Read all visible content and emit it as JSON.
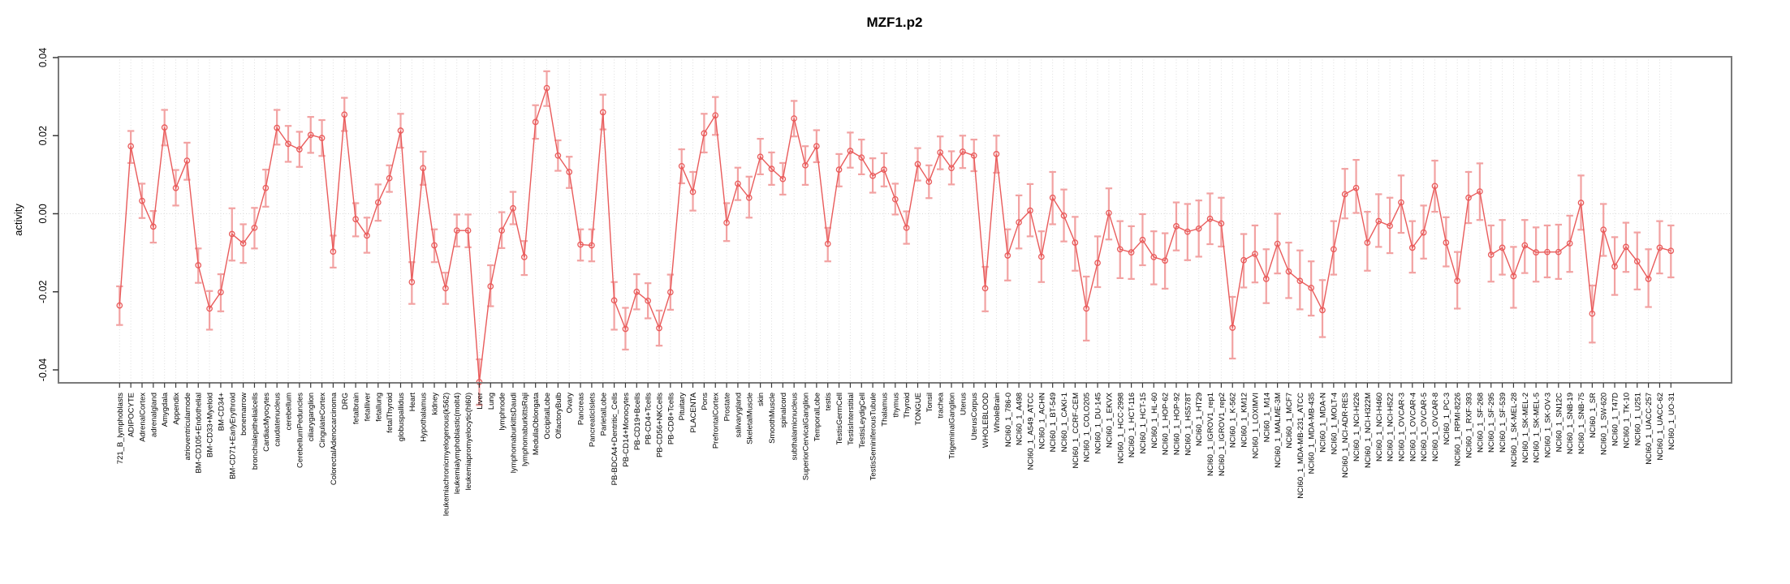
{
  "title": "MZF1.p2",
  "chart_data": {
    "type": "line",
    "title": "MZF1.p2",
    "xlabel": "",
    "ylabel": "activity",
    "ylim": [
      -0.052,
      0.0455
    ],
    "yticks": [
      0.04,
      0.02,
      0.0,
      -0.02,
      -0.04
    ],
    "ytick_labels": [
      "0.04",
      "0.02",
      "0.00",
      "-0.02",
      "-0.04"
    ],
    "grid": "vertical dotted gridline per category; horizontal dotted line at 0.00",
    "legend_position": "none",
    "marker": "open-circle",
    "error_bars": true,
    "colors": {
      "series": "#e95b5b",
      "error_bar": "#f2a2a2",
      "grid": "#dedede",
      "box": "#7a7a7a",
      "tick": "#3a3a3a",
      "text": "#000000"
    },
    "categories": [
      "721_B_lymphoblasts",
      "ADIPOCYTE",
      "AdrenalCortex",
      "adrenalgland",
      "Amygdala",
      "Appendix",
      "atrioventricularnode",
      "BM-CD105+Endothelial",
      "BM-CD33+Myeloid",
      "BM-CD34+",
      "BM-CD71+EarlyErythroid",
      "bonemarrow",
      "bronchialepithelialcells",
      "CardiacMyocytes",
      "caudatenucleus",
      "cerebellum",
      "CerebellumPeduncles",
      "ciliaryganglion",
      "CingulateCortex",
      "ColorectalAdenocarcinoma",
      "DRG",
      "fetalbrain",
      "fetalliver",
      "fetallung",
      "fetalThyroid",
      "globuspallidus",
      "Heart",
      "Hypothalamus",
      "kidney",
      "leukemiachronicmyelogenous(k562)",
      "leukemialymphoblastic(molt4)",
      "leukemiapromyelocytic(hl60)",
      "Liver",
      "Lung",
      "lymphnode",
      "lymphomaburkittsDaudi",
      "lymphomaburkittsRaji",
      "MedullaOblongata",
      "OccipitalLobe",
      "OlfactoryBulb",
      "Ovary",
      "Pancreas",
      "PancreaticIslets",
      "ParietalLobe",
      "PB-BDCA4+Dentritic_Cells",
      "PB-CD14+Monocytes",
      "PB-CD19+Bcells",
      "PB-CD4+Tcells",
      "PB-CD56+NKCells",
      "PB-CD8+Tcells",
      "Pituitary",
      "PLACENTA",
      "Pons",
      "PrefrontalCortex",
      "Prostate",
      "salivarygland",
      "SkeletalMuscle",
      "skin",
      "SmoothMuscle",
      "spinalcord",
      "subthalamicnucleus",
      "SuperiorCervicalGanglion",
      "TemporalLobe",
      "testis",
      "TestisGermCell",
      "TestisInterstitial",
      "TestisLeydigCell",
      "TestisSeminiferousTubule",
      "Thalamus",
      "thymus",
      "Thyroid",
      "TONGUE",
      "Tonsil",
      "trachea",
      "TrigeminalGanglion",
      "Uterus",
      "UterusCorpus",
      "WHOLEBLOOD",
      "WholeBrain",
      "NCI60_1_786-0",
      "NCI60_1_A498",
      "NCI60_1_A549_ATCC",
      "NCI60_1_ACHN",
      "NCI60_1_BT-549",
      "NCI60_1_CAKI-1",
      "NCI60_1_CCRF-CEM",
      "NCI60_1_COLO205",
      "NCI60_1_DU-145",
      "NCI60_1_EKVX",
      "NCI60_1_HCC-2998",
      "NCI60_1_HCT-116",
      "NCI60_1_HCT-15",
      "NCI60_1_HL-60",
      "NCI60_1_HOP-62",
      "NCI60_1_HOP-92",
      "NCI60_1_HS578T",
      "NCI60_1_HT29",
      "NCI60_1_IGROV1_rep1",
      "NCI60_1_IGROV1_rep2",
      "NCI60_1_K-562",
      "NCI60_1_KM12",
      "NCI60_1_LOXIMVI",
      "NCI60_1_M14",
      "NCI60_1_MALME-3M",
      "NCI60_1_MCF7",
      "NCI60_1_MDA-MB-231_ATCC",
      "NCI60_1_MDA-MB-435",
      "NCI60_1_MDA-N",
      "NCI60_1_MOLT-4",
      "NCI60_1_NCI-ADR-RES",
      "NCI60_1_NCI-H226",
      "NCI60_1_NCI-H322M",
      "NCI60_1_NCI-H460",
      "NCI60_1_NCI-H522",
      "NCI60_1_OVCAR-3",
      "NCI60_1_OVCAR-4",
      "NCI60_1_OVCAR-5",
      "NCI60_1_OVCAR-8",
      "NCI60_1_PC-3",
      "NCI60_1_RPMI-8226",
      "NCI60_1_RXF-393",
      "NCI60_1_SF-268",
      "NCI60_1_SF-295",
      "NCI60_1_SF-539",
      "NCI60_1_SK-MEL-28",
      "NCI60_1_SK-MEL-2",
      "NCI60_1_SK-MEL-5",
      "NCI60_1_SK-OV-3",
      "NCI60_1_SN12C",
      "NCI60_1_SNB-19",
      "NCI60_1_SNB-75",
      "NCI60_1_SR",
      "NCI60_1_SW-620",
      "NCI60_1_T47D",
      "NCI60_1_TK-10",
      "NCI60_1_U251",
      "NCI60_1_UACC-257",
      "NCI60_1_UACC-62",
      "NCI60_1_UO-31"
    ],
    "series": [
      {
        "name": "activity",
        "values": [
          -0.0235,
          0.0173,
          0.0033,
          -0.0033,
          0.0221,
          0.0066,
          0.0136,
          -0.0132,
          -0.0243,
          -0.0201,
          -0.0052,
          -0.0076,
          -0.0036,
          0.0066,
          0.022,
          0.0179,
          0.0165,
          0.0202,
          0.0194,
          -0.0097,
          0.0254,
          -0.0014,
          -0.0056,
          0.0029,
          0.0091,
          0.0213,
          -0.0175,
          0.0117,
          -0.0081,
          -0.0191,
          -0.0043,
          -0.0043,
          -0.0431,
          -0.0186,
          -0.0043,
          0.0014,
          -0.0111,
          0.0235,
          0.0322,
          0.0149,
          0.0107,
          -0.0079,
          -0.0081,
          0.026,
          -0.0222,
          -0.0295,
          -0.02,
          -0.0223,
          -0.0293,
          -0.0201,
          0.0122,
          0.0056,
          0.0206,
          0.0252,
          -0.0023,
          0.0077,
          0.0041,
          0.0146,
          0.0115,
          0.0089,
          0.0244,
          0.0124,
          0.0173,
          -0.0077,
          0.0113,
          0.0161,
          0.0144,
          0.0097,
          0.0113,
          0.0037,
          -0.0036,
          0.0127,
          0.0082,
          0.0157,
          0.0117,
          0.0159,
          0.0149,
          -0.0191,
          0.0153,
          -0.0107,
          -0.0022,
          0.0008,
          -0.011,
          0.0041,
          -0.0005,
          -0.0074,
          -0.0243,
          -0.0126,
          0.0002,
          -0.0091,
          -0.0099,
          -0.0067,
          -0.0111,
          -0.012,
          -0.0032,
          -0.0046,
          -0.0038,
          -0.0013,
          -0.0025,
          -0.0292,
          -0.0119,
          -0.0103,
          -0.0167,
          -0.0077,
          -0.0148,
          -0.0172,
          -0.019,
          -0.0247,
          -0.0091,
          0.005,
          0.0066,
          -0.0074,
          -0.0019,
          -0.0031,
          0.0029,
          -0.0087,
          -0.0048,
          0.0071,
          -0.0074,
          -0.0172,
          0.0041,
          0.0057,
          -0.0105,
          -0.0087,
          -0.016,
          -0.0081,
          -0.0099,
          -0.0098,
          -0.0098,
          -0.0076,
          0.0028,
          -0.0256,
          -0.0041,
          -0.0135,
          -0.0085,
          -0.0122,
          -0.0167,
          -0.0087,
          -0.0095
        ],
        "error_hi": [
          -0.0186,
          0.0212,
          0.0077,
          0.0007,
          0.0266,
          0.0112,
          0.0182,
          -0.0089,
          -0.0198,
          -0.0155,
          0.0014,
          -0.0027,
          0.0015,
          0.0113,
          0.0266,
          0.0225,
          0.021,
          0.0248,
          0.024,
          -0.0056,
          0.0297,
          0.0027,
          -0.001,
          0.0075,
          0.0124,
          0.0256,
          -0.0124,
          0.0159,
          -0.004,
          -0.0151,
          -0.0002,
          -0.0002,
          -0.0373,
          -0.0132,
          0.0004,
          0.0056,
          -0.007,
          0.0278,
          0.0365,
          0.0188,
          0.0146,
          -0.004,
          -0.004,
          0.0305,
          -0.0175,
          -0.0241,
          -0.0155,
          -0.0178,
          -0.0248,
          -0.0156,
          0.0165,
          0.0107,
          0.0256,
          0.0299,
          0.0027,
          0.0118,
          0.0095,
          0.0192,
          0.0157,
          0.013,
          0.0289,
          0.0173,
          0.0214,
          -0.0036,
          0.0153,
          0.0208,
          0.019,
          0.0142,
          0.0155,
          0.0077,
          0.0006,
          0.0168,
          0.0124,
          0.0198,
          0.016,
          0.02,
          0.019,
          -0.0136,
          0.02,
          -0.004,
          0.0047,
          0.0076,
          -0.0045,
          0.0107,
          0.0062,
          -0.0008,
          -0.0161,
          -0.0058,
          0.0065,
          -0.0019,
          -0.0032,
          -0.0001,
          -0.0045,
          -0.005,
          0.0029,
          0.0025,
          0.0034,
          0.0052,
          0.0041,
          -0.0213,
          -0.0052,
          -0.003,
          -0.0091,
          0.0,
          -0.0074,
          -0.0094,
          -0.0122,
          -0.017,
          -0.0019,
          0.0115,
          0.0138,
          0.0005,
          0.005,
          0.0041,
          0.0098,
          -0.0019,
          0.0021,
          0.0136,
          -0.0009,
          -0.0098,
          0.0107,
          0.0129,
          -0.003,
          -0.0016,
          -0.0085,
          -0.0016,
          -0.0035,
          -0.003,
          -0.0028,
          -0.0005,
          0.0098,
          -0.0184,
          0.0025,
          -0.006,
          -0.0023,
          -0.0048,
          -0.0091,
          -0.0019,
          -0.003
        ],
        "error_lo": [
          -0.0285,
          0.013,
          -0.0011,
          -0.0074,
          0.0175,
          0.0021,
          0.0087,
          -0.0177,
          -0.0297,
          -0.025,
          -0.012,
          -0.0126,
          -0.0089,
          0.0018,
          0.0177,
          0.0133,
          0.012,
          0.0156,
          0.0148,
          -0.0138,
          0.0212,
          -0.0058,
          -0.01,
          -0.0018,
          0.0056,
          0.0169,
          -0.0231,
          0.0074,
          -0.0124,
          -0.0231,
          -0.0084,
          -0.0086,
          -0.049,
          -0.0237,
          -0.0088,
          -0.0027,
          -0.0157,
          0.0192,
          0.0276,
          0.011,
          0.0066,
          -0.012,
          -0.0122,
          0.0216,
          -0.0297,
          -0.0348,
          -0.0245,
          -0.0268,
          -0.0338,
          -0.0246,
          0.0078,
          0.0008,
          0.0157,
          0.0202,
          -0.007,
          0.0035,
          -0.001,
          0.0101,
          0.0074,
          0.0049,
          0.0198,
          0.0074,
          0.0132,
          -0.0122,
          0.007,
          0.0118,
          0.0101,
          0.0054,
          0.007,
          -0.0002,
          -0.0077,
          0.0085,
          0.004,
          0.0114,
          0.0075,
          0.0117,
          0.0109,
          -0.025,
          0.0105,
          -0.0171,
          -0.0089,
          -0.0058,
          -0.0175,
          -0.0027,
          -0.0071,
          -0.0146,
          -0.0325,
          -0.0188,
          -0.0066,
          -0.0165,
          -0.0167,
          -0.0132,
          -0.0181,
          -0.0192,
          -0.0094,
          -0.0119,
          -0.011,
          -0.0078,
          -0.0084,
          -0.0371,
          -0.0189,
          -0.0176,
          -0.0229,
          -0.0153,
          -0.0216,
          -0.0245,
          -0.0261,
          -0.0316,
          -0.0156,
          -0.0012,
          0.0002,
          -0.0146,
          -0.0085,
          -0.0101,
          -0.0049,
          -0.0151,
          -0.0115,
          0.0005,
          -0.0135,
          -0.0243,
          -0.0024,
          -0.0016,
          -0.0174,
          -0.0156,
          -0.0241,
          -0.0152,
          -0.0174,
          -0.0163,
          -0.0167,
          -0.0149,
          -0.0041,
          -0.033,
          -0.0108,
          -0.0208,
          -0.0149,
          -0.0194,
          -0.0239,
          -0.0153,
          -0.0163
        ]
      }
    ]
  }
}
